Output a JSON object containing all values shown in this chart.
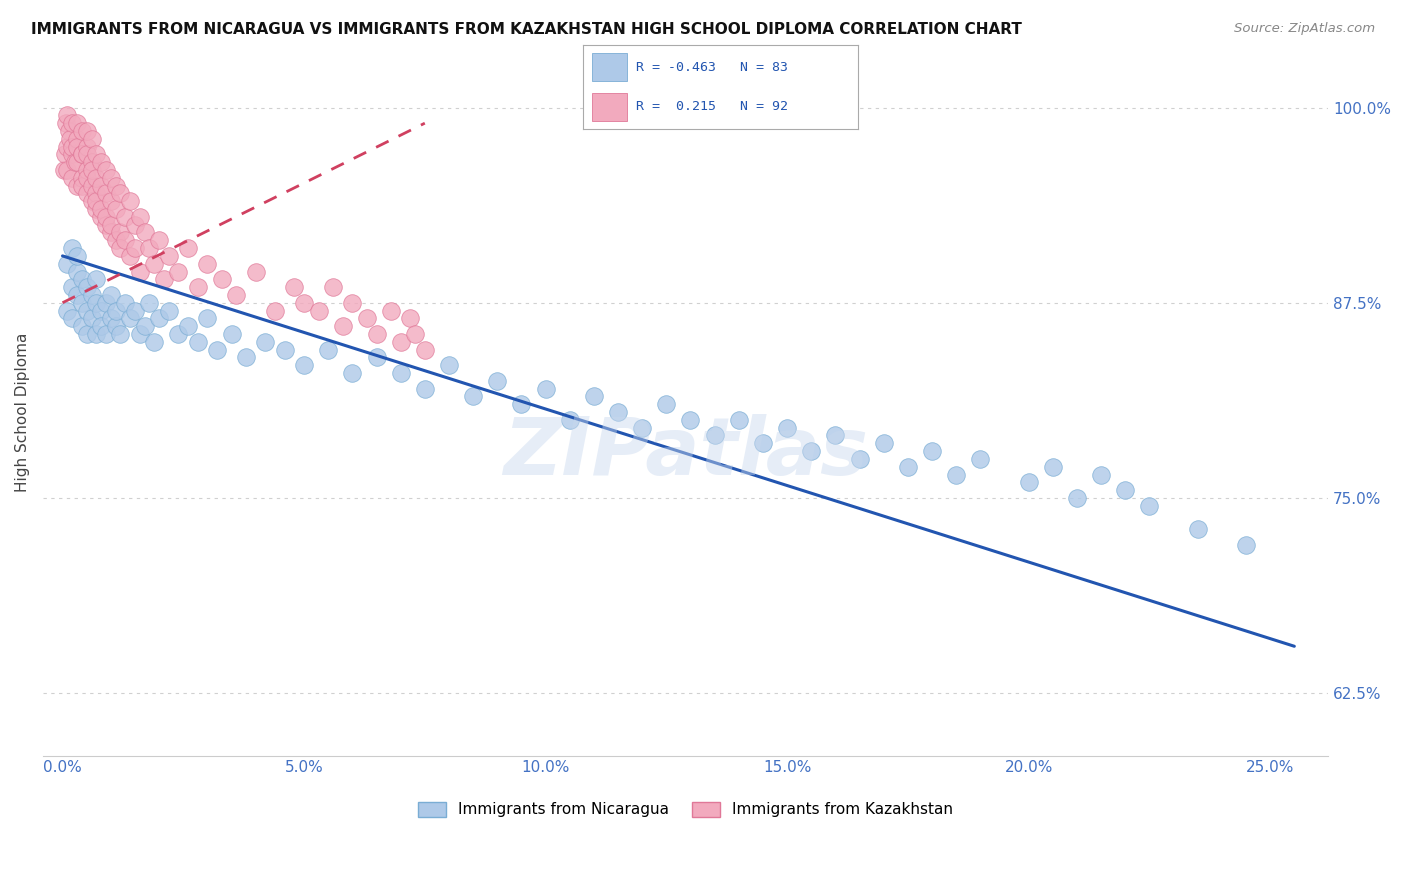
{
  "title": "IMMIGRANTS FROM NICARAGUA VS IMMIGRANTS FROM KAZAKHSTAN HIGH SCHOOL DIPLOMA CORRELATION CHART",
  "source": "Source: ZipAtlas.com",
  "ylabel": "High School Diploma",
  "xlabel_ticks": [
    "0.0%",
    "5.0%",
    "10.0%",
    "15.0%",
    "20.0%",
    "25.0%"
  ],
  "xlabel_vals": [
    0.0,
    0.05,
    0.1,
    0.15,
    0.2,
    0.25
  ],
  "ylabel_ticks": [
    "62.5%",
    "75.0%",
    "87.5%",
    "100.0%"
  ],
  "ylabel_vals": [
    0.625,
    0.75,
    0.875,
    1.0
  ],
  "ylim": [
    0.585,
    1.025
  ],
  "xlim": [
    -0.004,
    0.262
  ],
  "nicaragua_color": "#aec9e8",
  "nicaragua_edge": "#7aadd4",
  "kazakhstan_color": "#f2aabe",
  "kazakhstan_edge": "#e07898",
  "nicaragua_R": -0.463,
  "nicaragua_N": 83,
  "kazakhstan_R": 0.215,
  "kazakhstan_N": 92,
  "legend_label1": "Immigrants from Nicaragua",
  "legend_label2": "Immigrants from Kazakhstan",
  "watermark": "ZIPatlas",
  "background_color": "#ffffff",
  "grid_color": "#d0d0d0",
  "tick_label_color": "#4472c4",
  "nic_trendline": [
    0.0,
    0.255,
    0.905,
    0.655
  ],
  "kaz_trendline": [
    0.0,
    0.075,
    0.875,
    0.99
  ],
  "nicaragua_x": [
    0.001,
    0.001,
    0.002,
    0.002,
    0.002,
    0.003,
    0.003,
    0.003,
    0.004,
    0.004,
    0.004,
    0.005,
    0.005,
    0.005,
    0.006,
    0.006,
    0.007,
    0.007,
    0.007,
    0.008,
    0.008,
    0.009,
    0.009,
    0.01,
    0.01,
    0.011,
    0.011,
    0.012,
    0.013,
    0.014,
    0.015,
    0.016,
    0.017,
    0.018,
    0.019,
    0.02,
    0.022,
    0.024,
    0.026,
    0.028,
    0.03,
    0.032,
    0.035,
    0.038,
    0.042,
    0.046,
    0.05,
    0.055,
    0.06,
    0.065,
    0.07,
    0.075,
    0.08,
    0.085,
    0.09,
    0.095,
    0.1,
    0.105,
    0.11,
    0.115,
    0.12,
    0.125,
    0.13,
    0.135,
    0.14,
    0.145,
    0.15,
    0.155,
    0.16,
    0.165,
    0.17,
    0.175,
    0.18,
    0.185,
    0.19,
    0.2,
    0.205,
    0.21,
    0.215,
    0.22,
    0.225,
    0.235,
    0.245
  ],
  "nicaragua_y": [
    0.9,
    0.87,
    0.91,
    0.885,
    0.865,
    0.895,
    0.88,
    0.905,
    0.875,
    0.86,
    0.89,
    0.87,
    0.885,
    0.855,
    0.88,
    0.865,
    0.875,
    0.855,
    0.89,
    0.87,
    0.86,
    0.875,
    0.855,
    0.865,
    0.88,
    0.86,
    0.87,
    0.855,
    0.875,
    0.865,
    0.87,
    0.855,
    0.86,
    0.875,
    0.85,
    0.865,
    0.87,
    0.855,
    0.86,
    0.85,
    0.865,
    0.845,
    0.855,
    0.84,
    0.85,
    0.845,
    0.835,
    0.845,
    0.83,
    0.84,
    0.83,
    0.82,
    0.835,
    0.815,
    0.825,
    0.81,
    0.82,
    0.8,
    0.815,
    0.805,
    0.795,
    0.81,
    0.8,
    0.79,
    0.8,
    0.785,
    0.795,
    0.78,
    0.79,
    0.775,
    0.785,
    0.77,
    0.78,
    0.765,
    0.775,
    0.76,
    0.77,
    0.75,
    0.765,
    0.755,
    0.745,
    0.73,
    0.72
  ],
  "kazakhstan_x": [
    0.0003,
    0.0005,
    0.0007,
    0.001,
    0.001,
    0.001,
    0.0013,
    0.0015,
    0.002,
    0.002,
    0.002,
    0.002,
    0.0025,
    0.003,
    0.003,
    0.003,
    0.003,
    0.003,
    0.004,
    0.004,
    0.004,
    0.004,
    0.004,
    0.005,
    0.005,
    0.005,
    0.005,
    0.005,
    0.005,
    0.006,
    0.006,
    0.006,
    0.006,
    0.006,
    0.007,
    0.007,
    0.007,
    0.007,
    0.007,
    0.008,
    0.008,
    0.008,
    0.008,
    0.009,
    0.009,
    0.009,
    0.009,
    0.01,
    0.01,
    0.01,
    0.01,
    0.011,
    0.011,
    0.011,
    0.012,
    0.012,
    0.012,
    0.013,
    0.013,
    0.014,
    0.014,
    0.015,
    0.015,
    0.016,
    0.016,
    0.017,
    0.018,
    0.019,
    0.02,
    0.021,
    0.022,
    0.024,
    0.026,
    0.028,
    0.03,
    0.033,
    0.036,
    0.04,
    0.044,
    0.048,
    0.05,
    0.053,
    0.056,
    0.058,
    0.06,
    0.063,
    0.065,
    0.068,
    0.07,
    0.072,
    0.073,
    0.075
  ],
  "kazakhstan_y": [
    0.96,
    0.97,
    0.99,
    0.975,
    0.96,
    0.995,
    0.985,
    0.98,
    0.97,
    0.955,
    0.99,
    0.975,
    0.965,
    0.98,
    0.965,
    0.95,
    0.99,
    0.975,
    0.97,
    0.955,
    0.985,
    0.97,
    0.95,
    0.975,
    0.96,
    0.945,
    0.985,
    0.97,
    0.955,
    0.965,
    0.95,
    0.98,
    0.94,
    0.96,
    0.945,
    0.97,
    0.935,
    0.955,
    0.94,
    0.965,
    0.93,
    0.95,
    0.935,
    0.96,
    0.925,
    0.945,
    0.93,
    0.955,
    0.92,
    0.94,
    0.925,
    0.95,
    0.915,
    0.935,
    0.92,
    0.945,
    0.91,
    0.93,
    0.915,
    0.94,
    0.905,
    0.925,
    0.91,
    0.93,
    0.895,
    0.92,
    0.91,
    0.9,
    0.915,
    0.89,
    0.905,
    0.895,
    0.91,
    0.885,
    0.9,
    0.89,
    0.88,
    0.895,
    0.87,
    0.885,
    0.875,
    0.87,
    0.885,
    0.86,
    0.875,
    0.865,
    0.855,
    0.87,
    0.85,
    0.865,
    0.855,
    0.845
  ]
}
